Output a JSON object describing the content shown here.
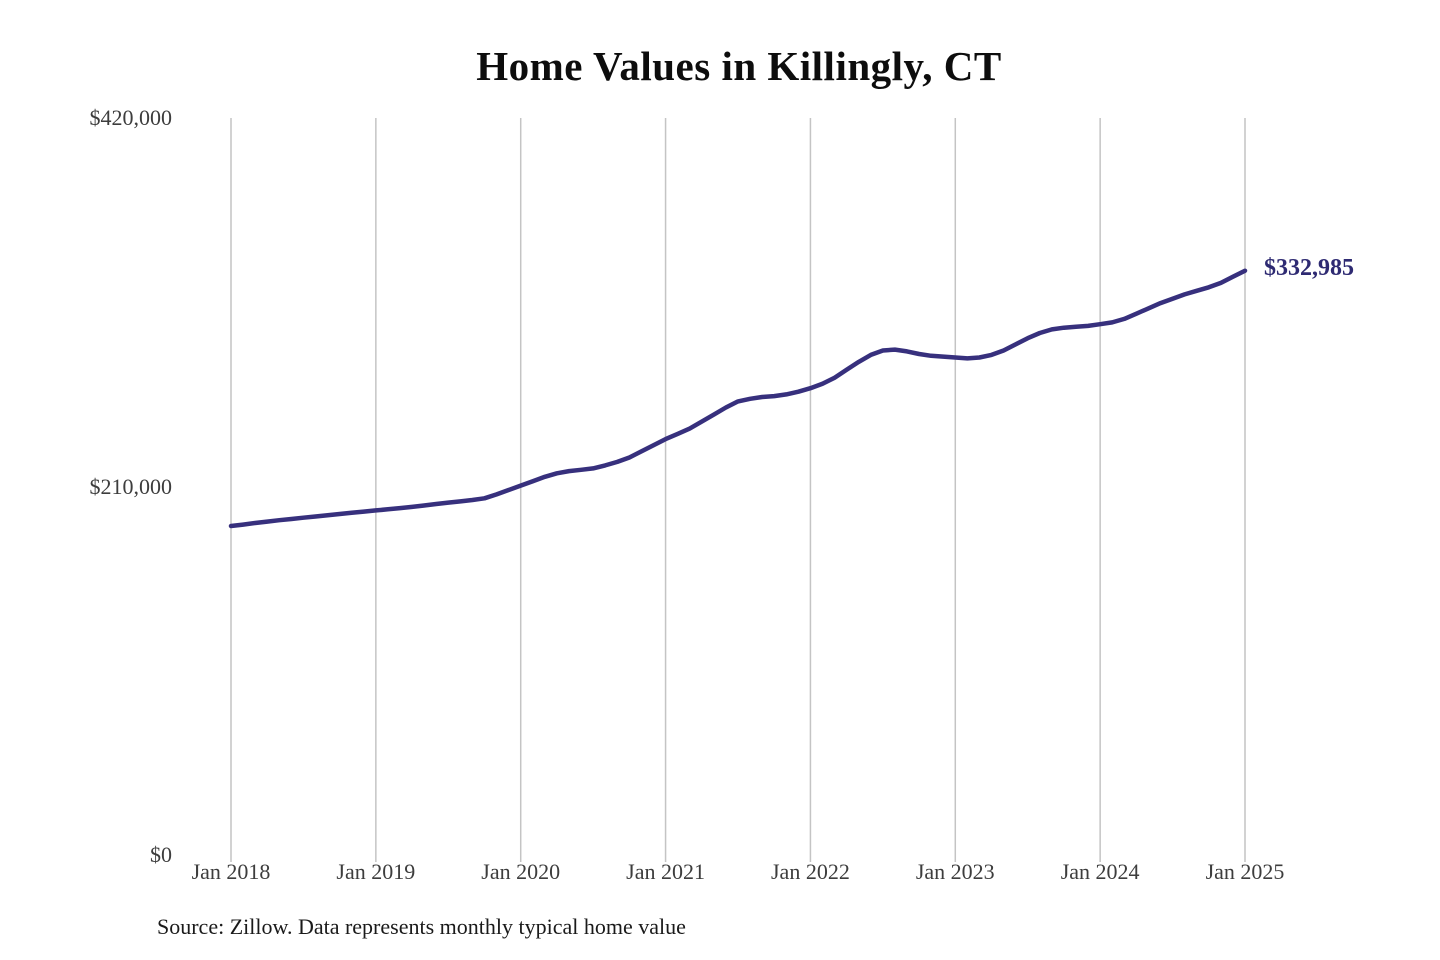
{
  "source_note": "Source: Zillow. Data represents monthly typical home value",
  "colors": {
    "line": "#37307d",
    "end_label": "#2e2a72",
    "grid": "#c4c4c4",
    "axis_text": "#3d3d3d",
    "title_text": "#0d0d0d"
  },
  "chart_data": {
    "type": "line",
    "title": "Home Values in Killingly, CT",
    "final_value_label": "$332,985",
    "final_value": 332985,
    "ylim": [
      0,
      420000
    ],
    "grid": "vertical-yearly",
    "legend": "none",
    "yticks": [
      {
        "value": 420000,
        "label": "$420,000"
      },
      {
        "value": 210000,
        "label": "$210,000"
      },
      {
        "value": 0,
        "label": "$0"
      }
    ],
    "xticks": [
      "Jan 2018",
      "Jan 2019",
      "Jan 2020",
      "Jan 2021",
      "Jan 2022",
      "Jan 2023",
      "Jan 2024",
      "Jan 2025"
    ],
    "x": [
      "2018-01",
      "2018-02",
      "2018-03",
      "2018-04",
      "2018-05",
      "2018-06",
      "2018-07",
      "2018-08",
      "2018-09",
      "2018-10",
      "2018-11",
      "2018-12",
      "2019-01",
      "2019-02",
      "2019-03",
      "2019-04",
      "2019-05",
      "2019-06",
      "2019-07",
      "2019-08",
      "2019-09",
      "2019-10",
      "2019-11",
      "2019-12",
      "2020-01",
      "2020-02",
      "2020-03",
      "2020-04",
      "2020-05",
      "2020-06",
      "2020-07",
      "2020-08",
      "2020-09",
      "2020-10",
      "2020-11",
      "2020-12",
      "2021-01",
      "2021-02",
      "2021-03",
      "2021-04",
      "2021-05",
      "2021-06",
      "2021-07",
      "2021-08",
      "2021-09",
      "2021-10",
      "2021-11",
      "2021-12",
      "2022-01",
      "2022-02",
      "2022-03",
      "2022-04",
      "2022-05",
      "2022-06",
      "2022-07",
      "2022-08",
      "2022-09",
      "2022-10",
      "2022-11",
      "2022-12",
      "2023-01",
      "2023-02",
      "2023-03",
      "2023-04",
      "2023-05",
      "2023-06",
      "2023-07",
      "2023-08",
      "2023-09",
      "2023-10",
      "2023-11",
      "2023-12",
      "2024-01",
      "2024-02",
      "2024-03",
      "2024-04",
      "2024-05",
      "2024-06",
      "2024-07",
      "2024-08",
      "2024-09",
      "2024-10",
      "2024-11",
      "2024-12",
      "2025-01"
    ],
    "values": [
      187500,
      188300,
      189200,
      190000,
      190800,
      191500,
      192200,
      192900,
      193600,
      194300,
      195000,
      195700,
      196400,
      197000,
      197700,
      198400,
      199200,
      200000,
      200800,
      201500,
      202300,
      203300,
      205500,
      208000,
      210500,
      213000,
      215500,
      217500,
      218800,
      219500,
      220300,
      222000,
      224000,
      226500,
      230000,
      233500,
      237000,
      240000,
      243000,
      247000,
      251000,
      255000,
      258500,
      260000,
      261000,
      261500,
      262500,
      264000,
      266000,
      268500,
      272000,
      276500,
      281000,
      285000,
      287500,
      288000,
      287000,
      285500,
      284500,
      284000,
      283500,
      283000,
      283500,
      285000,
      287500,
      291000,
      294500,
      297500,
      299500,
      300500,
      301000,
      301500,
      302500,
      303500,
      305500,
      308500,
      311500,
      314500,
      317000,
      319500,
      321500,
      323500,
      326000,
      329500,
      332985
    ]
  }
}
